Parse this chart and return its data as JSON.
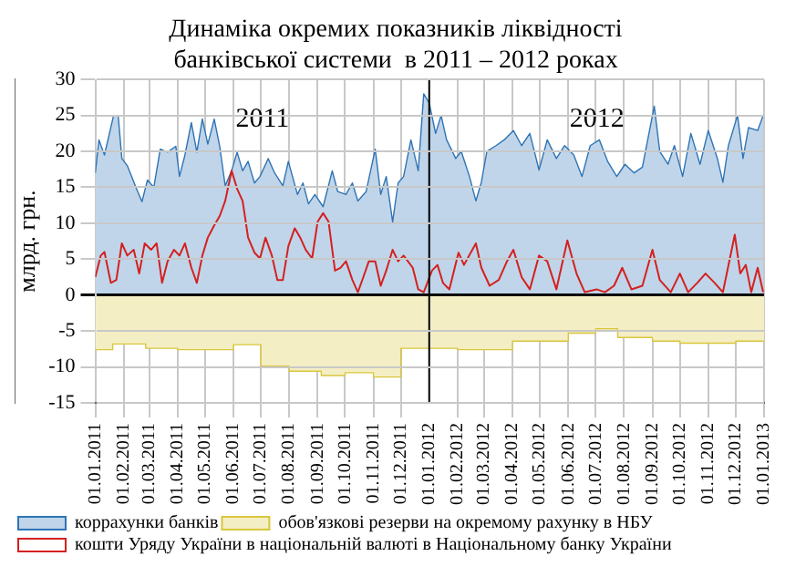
{
  "chart_data": {
    "type": "area",
    "title": "Динаміка окремих показників ліквідності банківської системи  в 2011 – 2012 роках",
    "ylabel": "млрд. грн.",
    "annotations": [
      "2011",
      "2012"
    ],
    "xlim": [
      "2011-01-01",
      "2013-01-01"
    ],
    "xticks": [
      {
        "value": "2011-01-01",
        "label": "01.01.2011"
      },
      {
        "value": "2011-02-01",
        "label": "01.02.2011"
      },
      {
        "value": "2011-03-01",
        "label": "01.03.2011"
      },
      {
        "value": "2011-04-01",
        "label": "01.04.2011"
      },
      {
        "value": "2011-05-01",
        "label": "01.05.2011"
      },
      {
        "value": "2011-06-01",
        "label": "01.06.2011"
      },
      {
        "value": "2011-07-01",
        "label": "01.07.2011"
      },
      {
        "value": "2011-08-01",
        "label": "01.08.2011"
      },
      {
        "value": "2011-09-01",
        "label": "01.09.2011"
      },
      {
        "value": "2011-10-01",
        "label": "01.10.2011"
      },
      {
        "value": "2011-11-01",
        "label": "01.11.2011"
      },
      {
        "value": "2011-12-01",
        "label": "01.12.2011"
      },
      {
        "value": "2012-01-01",
        "label": "01.01.2012"
      },
      {
        "value": "2012-02-01",
        "label": "01.02.2012"
      },
      {
        "value": "2012-03-01",
        "label": "01.03.2012"
      },
      {
        "value": "2012-04-01",
        "label": "01.04.2012"
      },
      {
        "value": "2012-05-01",
        "label": "01.05.2012"
      },
      {
        "value": "2012-06-01",
        "label": "01.06.2012"
      },
      {
        "value": "2012-07-01",
        "label": "01.07.2012"
      },
      {
        "value": "2012-08-01",
        "label": "01.08.2012"
      },
      {
        "value": "2012-09-01",
        "label": "01.09.2012"
      },
      {
        "value": "2012-10-01",
        "label": "01.10.2012"
      },
      {
        "value": "2012-11-01",
        "label": "01.11.2012"
      },
      {
        "value": "2012-12-01",
        "label": "01.12.2012"
      },
      {
        "value": "2013-01-01",
        "label": "01.01.2013"
      }
    ],
    "ylim": [
      -15,
      30
    ],
    "yticks": [
      -15,
      -10,
      -5,
      0,
      5,
      10,
      15,
      20,
      25,
      30
    ],
    "grid": true,
    "legend": "bottom",
    "ref_lines": [
      {
        "axis": "x",
        "value": "2012-01-01",
        "color": "#000000"
      }
    ],
    "series": [
      {
        "name": "коррахунки банків",
        "color": "#2e74b5",
        "x": [
          "2011-01-01",
          "2011-01-05",
          "2011-01-11",
          "2011-01-21",
          "2011-01-26",
          "2011-01-30",
          "2011-02-05",
          "2011-02-15",
          "2011-02-21",
          "2011-02-27",
          "2011-03-06",
          "2011-03-13",
          "2011-03-21",
          "2011-03-30",
          "2011-04-03",
          "2011-04-09",
          "2011-04-16",
          "2011-04-22",
          "2011-04-28",
          "2011-05-04",
          "2011-05-11",
          "2011-05-17",
          "2011-05-23",
          "2011-05-30",
          "2011-06-05",
          "2011-06-11",
          "2011-06-17",
          "2011-06-24",
          "2011-06-30",
          "2011-07-09",
          "2011-07-16",
          "2011-07-25",
          "2011-07-31",
          "2011-08-10",
          "2011-08-16",
          "2011-08-22",
          "2011-08-29",
          "2011-09-07",
          "2011-09-17",
          "2011-09-23",
          "2011-10-02",
          "2011-10-09",
          "2011-10-15",
          "2011-10-24",
          "2011-11-03",
          "2011-11-09",
          "2011-11-15",
          "2011-11-22",
          "2011-11-28",
          "2011-12-04",
          "2011-12-12",
          "2011-12-20",
          "2011-12-26",
          "2012-01-01",
          "2012-01-08",
          "2012-01-14",
          "2012-01-20",
          "2012-01-30",
          "2012-02-05",
          "2012-02-14",
          "2012-02-21",
          "2012-02-27",
          "2012-03-04",
          "2012-03-14",
          "2012-03-23",
          "2012-04-02",
          "2012-04-11",
          "2012-04-20",
          "2012-04-30",
          "2012-05-09",
          "2012-05-19",
          "2012-05-28",
          "2012-06-07",
          "2012-06-16",
          "2012-06-25",
          "2012-07-05",
          "2012-07-14",
          "2012-07-24",
          "2012-08-02",
          "2012-08-12",
          "2012-08-21",
          "2012-09-03",
          "2012-09-09",
          "2012-09-18",
          "2012-09-25",
          "2012-10-04",
          "2012-10-13",
          "2012-10-23",
          "2012-11-01",
          "2012-11-11",
          "2012-11-17",
          "2012-11-23",
          "2012-12-03",
          "2012-12-09",
          "2012-12-15",
          "2012-12-25",
          "2012-12-31"
        ],
        "values": [
          17,
          21.6,
          19.5,
          25,
          25,
          19,
          18,
          14.8,
          13,
          16,
          15,
          20.3,
          19.9,
          20.7,
          16.5,
          19.5,
          24,
          19.9,
          24.5,
          21,
          24.5,
          20.7,
          15.2,
          17.3,
          19.9,
          17.3,
          18.6,
          15.6,
          16.5,
          19,
          17,
          15.2,
          18.6,
          14,
          15.6,
          12.7,
          14,
          12.3,
          17.3,
          14.4,
          14,
          15.6,
          13.1,
          14.4,
          20.3,
          14,
          16.5,
          10.2,
          15.6,
          16.5,
          21.6,
          17.3,
          28,
          26.7,
          22.5,
          25,
          21.6,
          19,
          20,
          16.5,
          13.1,
          15.7,
          20,
          20.8,
          21.6,
          22.9,
          20.8,
          22.5,
          17.4,
          21.6,
          19,
          20.8,
          19.5,
          16.5,
          20.8,
          21.6,
          18.6,
          16.5,
          18.2,
          17,
          17.8,
          26.3,
          20,
          18.2,
          20.8,
          16.5,
          22.5,
          18.2,
          22.9,
          19,
          15.7,
          20.8,
          25,
          19,
          23.3,
          22.9,
          25
        ]
      },
      {
        "name": "обов'язкові резерви на окремому рахунку в НБУ",
        "color": "#d9c63c",
        "x": [
          "2011-01-01",
          "2011-01-20",
          "2011-01-20",
          "2011-02-25",
          "2011-02-25",
          "2011-04-01",
          "2011-04-01",
          "2011-06-01",
          "2011-06-01",
          "2011-07-01",
          "2011-07-01",
          "2011-08-01",
          "2011-08-01",
          "2011-09-05",
          "2011-09-05",
          "2011-10-01",
          "2011-10-01",
          "2011-11-01",
          "2011-11-01",
          "2011-12-01",
          "2011-12-01",
          "2012-02-01",
          "2012-02-01",
          "2012-04-01",
          "2012-04-01",
          "2012-06-01",
          "2012-06-01",
          "2012-07-01",
          "2012-07-01",
          "2012-07-25",
          "2012-07-25",
          "2012-09-01",
          "2012-09-01",
          "2012-10-01",
          "2012-10-01",
          "2012-12-01",
          "2012-12-01",
          "2013-01-01"
        ],
        "values": [
          -7.6,
          -7.6,
          -6.8,
          -6.8,
          -7.4,
          -7.4,
          -7.6,
          -7.6,
          -6.9,
          -6.9,
          -9.9,
          -9.9,
          -10.6,
          -10.6,
          -11.2,
          -11.2,
          -10.8,
          -10.8,
          -11.4,
          -11.4,
          -7.4,
          -7.4,
          -7.6,
          -7.6,
          -6.4,
          -6.4,
          -5.3,
          -5.3,
          -4.7,
          -4.7,
          -5.9,
          -5.9,
          -6.4,
          -6.4,
          -6.7,
          -6.7,
          -6.4,
          -6.4
        ]
      },
      {
        "name": "кошти Уряду України в національній валюті в Національному банку України",
        "type": "line",
        "color": "#d42020",
        "x": [
          "2011-01-01",
          "2011-01-07",
          "2011-01-11",
          "2011-01-18",
          "2011-01-24",
          "2011-01-30",
          "2011-02-05",
          "2011-02-12",
          "2011-02-18",
          "2011-02-24",
          "2011-03-03",
          "2011-03-09",
          "2011-03-15",
          "2011-03-21",
          "2011-03-28",
          "2011-04-03",
          "2011-04-09",
          "2011-04-16",
          "2011-04-22",
          "2011-04-28",
          "2011-05-04",
          "2011-05-11",
          "2011-05-17",
          "2011-05-23",
          "2011-05-30",
          "2011-06-05",
          "2011-06-11",
          "2011-06-17",
          "2011-06-24",
          "2011-06-30",
          "2011-07-06",
          "2011-07-13",
          "2011-07-19",
          "2011-07-25",
          "2011-07-31",
          "2011-08-07",
          "2011-08-13",
          "2011-08-19",
          "2011-08-26",
          "2011-09-01",
          "2011-09-07",
          "2011-09-13",
          "2011-09-20",
          "2011-09-26",
          "2011-10-02",
          "2011-10-09",
          "2011-10-15",
          "2011-10-21",
          "2011-10-27",
          "2011-11-03",
          "2011-11-09",
          "2011-11-15",
          "2011-11-22",
          "2011-11-28",
          "2011-12-04",
          "2011-12-14",
          "2011-12-20",
          "2011-12-26",
          "2012-01-04",
          "2012-01-10",
          "2012-01-16",
          "2012-01-23",
          "2012-02-02",
          "2012-02-08",
          "2012-02-21",
          "2012-02-27",
          "2012-03-07",
          "2012-03-17",
          "2012-03-26",
          "2012-04-02",
          "2012-04-11",
          "2012-04-20",
          "2012-04-30",
          "2012-05-09",
          "2012-05-19",
          "2012-05-31",
          "2012-06-10",
          "2012-06-19",
          "2012-07-02",
          "2012-07-11",
          "2012-07-21",
          "2012-07-30",
          "2012-08-09",
          "2012-08-21",
          "2012-09-01",
          "2012-09-09",
          "2012-09-21",
          "2012-10-01",
          "2012-10-10",
          "2012-10-20",
          "2012-10-29",
          "2012-11-08",
          "2012-11-17",
          "2012-11-30",
          "2012-12-06",
          "2012-12-12",
          "2012-12-18",
          "2012-12-25",
          "2012-12-31"
        ],
        "values": [
          2.5,
          5.5,
          6,
          1.7,
          2.1,
          7.2,
          5.5,
          6.3,
          3,
          7.2,
          6.3,
          7.2,
          1.7,
          4.7,
          6.3,
          5.5,
          7.2,
          3.8,
          1.7,
          5.5,
          8,
          9.7,
          11,
          13.1,
          17.3,
          14.8,
          13.1,
          8,
          5.9,
          5.1,
          8,
          5.5,
          2.1,
          2.1,
          6.8,
          9.3,
          8,
          6.3,
          5.1,
          10.2,
          11.4,
          10.2,
          3.4,
          3.8,
          4.7,
          2.1,
          0.4,
          2.5,
          4.7,
          4.7,
          1.3,
          3.4,
          6.3,
          4.7,
          5.5,
          3.8,
          0.8,
          0.4,
          3.4,
          4.2,
          1.7,
          0.8,
          5.9,
          4.2,
          7.2,
          3.8,
          1.3,
          2.1,
          4.7,
          6.3,
          2.5,
          0.8,
          5.5,
          4.7,
          0.8,
          7.6,
          3,
          0.4,
          0.8,
          0.4,
          1.3,
          3.8,
          0.8,
          1.3,
          6.3,
          2.1,
          0.4,
          3,
          0.4,
          1.7,
          3,
          1.7,
          0.4,
          8.4,
          3,
          4.2,
          0.4,
          3.8,
          0.4
        ]
      }
    ]
  }
}
